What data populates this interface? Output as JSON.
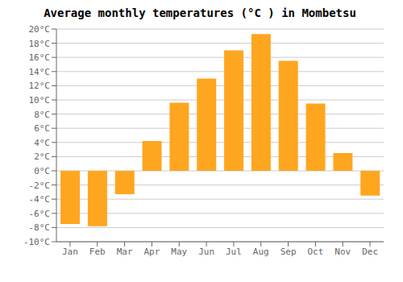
{
  "chart_data": {
    "type": "bar",
    "title": "Average monthly temperatures (°C ) in Mombetsu",
    "categories": [
      "Jan",
      "Feb",
      "Mar",
      "Apr",
      "May",
      "Jun",
      "Jul",
      "Aug",
      "Sep",
      "Oct",
      "Nov",
      "Dec"
    ],
    "values": [
      -7.5,
      -7.8,
      -3.3,
      4.2,
      9.6,
      13.0,
      17.0,
      19.3,
      15.5,
      9.5,
      2.5,
      -3.5
    ],
    "color": "#FFA620",
    "ylim": [
      -10,
      20
    ],
    "yticks": [
      {
        "value": -10,
        "label": "-10°C"
      },
      {
        "value": -8,
        "label": "-8°C"
      },
      {
        "value": -6,
        "label": "-6°C"
      },
      {
        "value": -4,
        "label": "-4°C"
      },
      {
        "value": -2,
        "label": "-2°C"
      },
      {
        "value": 0,
        "label": "0°C"
      },
      {
        "value": 2,
        "label": "2°C"
      },
      {
        "value": 4,
        "label": "4°C"
      },
      {
        "value": 6,
        "label": "6°C"
      },
      {
        "value": 8,
        "label": "8°C"
      },
      {
        "value": 10,
        "label": "10°C"
      },
      {
        "value": 12,
        "label": "12°C"
      },
      {
        "value": 14,
        "label": "14°C"
      },
      {
        "value": 16,
        "label": "16°C"
      },
      {
        "value": 18,
        "label": "18°C"
      },
      {
        "value": 20,
        "label": "20°C"
      }
    ],
    "grid": true
  }
}
